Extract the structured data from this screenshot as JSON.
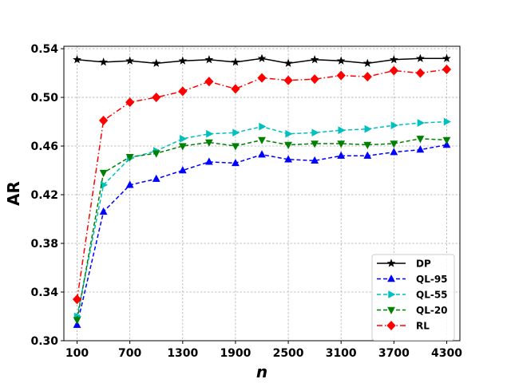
{
  "chart_data": {
    "type": "line",
    "title": "",
    "xlabel": "n",
    "ylabel": "AR",
    "xlim": [
      -50,
      4450
    ],
    "ylim": [
      0.3,
      0.542
    ],
    "xticks": [
      100,
      700,
      1300,
      1900,
      2500,
      3100,
      3700,
      4300
    ],
    "xtick_labels": [
      "100",
      "700",
      "1300",
      "1900",
      "2500",
      "3100",
      "3700",
      "4300"
    ],
    "yticks": [
      0.3,
      0.34,
      0.38,
      0.42,
      0.46,
      0.5,
      0.54
    ],
    "ytick_labels": [
      "0.30",
      "0.34",
      "0.38",
      "0.42",
      "0.46",
      "0.50",
      "0.54"
    ],
    "grid": true,
    "legend_position": "lower-right",
    "x": [
      100,
      400,
      700,
      1000,
      1300,
      1600,
      1900,
      2200,
      2500,
      2800,
      3100,
      3400,
      3700,
      4000,
      4300
    ],
    "series": [
      {
        "name": "DP",
        "color": "#000000",
        "marker": "star",
        "linestyle": "solid",
        "values": [
          0.531,
          0.529,
          0.53,
          0.528,
          0.53,
          0.531,
          0.529,
          0.532,
          0.528,
          0.531,
          0.53,
          0.528,
          0.531,
          0.532,
          0.532
        ]
      },
      {
        "name": "QL-95",
        "color": "#0000ff",
        "marker": "triangle-up",
        "linestyle": "dashed",
        "values": [
          0.313,
          0.406,
          0.428,
          0.433,
          0.44,
          0.447,
          0.446,
          0.453,
          0.449,
          0.448,
          0.452,
          0.452,
          0.455,
          0.457,
          0.461
        ]
      },
      {
        "name": "QL-55",
        "color": "#00bfbf",
        "marker": "triangle-right",
        "linestyle": "dashed",
        "values": [
          0.32,
          0.428,
          0.45,
          0.456,
          0.466,
          0.47,
          0.471,
          0.476,
          0.47,
          0.471,
          0.473,
          0.474,
          0.477,
          0.479,
          0.48
        ]
      },
      {
        "name": "QL-20",
        "color": "#008000",
        "marker": "triangle-down",
        "linestyle": "dashed",
        "values": [
          0.317,
          0.438,
          0.451,
          0.454,
          0.46,
          0.463,
          0.46,
          0.465,
          0.461,
          0.462,
          0.462,
          0.461,
          0.462,
          0.466,
          0.465
        ]
      },
      {
        "name": "RL",
        "color": "#ff0000",
        "marker": "diamond",
        "linestyle": "dashdot",
        "values": [
          0.334,
          0.481,
          0.496,
          0.5,
          0.505,
          0.513,
          0.507,
          0.516,
          0.514,
          0.515,
          0.518,
          0.517,
          0.522,
          0.52,
          0.523
        ]
      }
    ]
  }
}
